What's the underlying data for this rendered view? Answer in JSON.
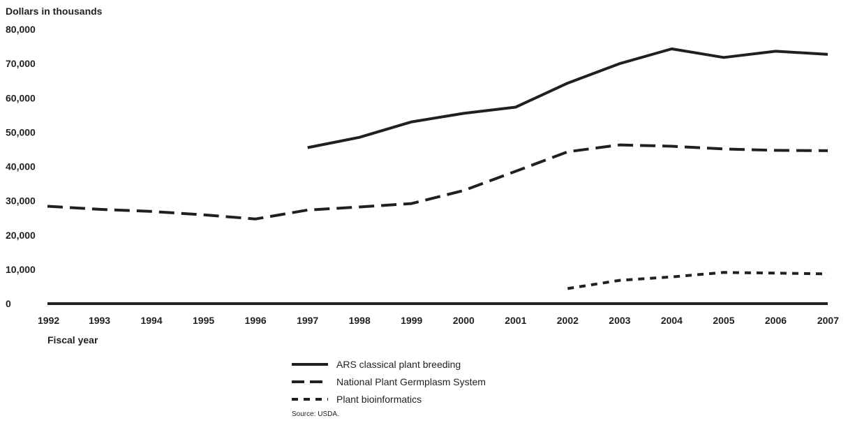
{
  "chart_data": {
    "type": "line",
    "ylabel": "Dollars in thousands",
    "xlabel": "Fiscal year",
    "ylim": [
      0,
      80000
    ],
    "yticks": [
      0,
      10000,
      20000,
      30000,
      40000,
      50000,
      60000,
      70000,
      80000
    ],
    "ytick_labels": [
      "0",
      "10,000",
      "20,000",
      "30,000",
      "40,000",
      "50,000",
      "60,000",
      "70,000",
      "80,000"
    ],
    "x": [
      1992,
      1993,
      1994,
      1995,
      1996,
      1997,
      1998,
      1999,
      2000,
      2001,
      2002,
      2003,
      2004,
      2005,
      2006,
      2007
    ],
    "x_labels": [
      "1992",
      "1993",
      "1994",
      "1995",
      "1996",
      "1997",
      "1998",
      "1999",
      "2000",
      "2001",
      "2002",
      "2003",
      "2004",
      "2005",
      "2006",
      "2007"
    ],
    "grid": false,
    "legend_position": "bottom-center",
    "series": [
      {
        "name": "ARS classical plant breeding",
        "style": "solid",
        "values": [
          null,
          null,
          null,
          null,
          null,
          45500,
          48500,
          53000,
          55500,
          57300,
          64300,
          70000,
          74300,
          71800,
          73600,
          72700
        ]
      },
      {
        "name": "National Plant Germplasm System",
        "style": "dashed",
        "values": [
          28400,
          27500,
          26900,
          25900,
          24700,
          27300,
          28200,
          29200,
          33000,
          38600,
          44300,
          46300,
          45900,
          45100,
          44700,
          44600
        ]
      },
      {
        "name": "Plant bioinformatics",
        "style": "dotted",
        "values": [
          null,
          null,
          null,
          null,
          null,
          null,
          null,
          null,
          null,
          null,
          4400,
          6800,
          7800,
          9100,
          8900,
          8700
        ]
      }
    ],
    "source": "Source: USDA."
  }
}
